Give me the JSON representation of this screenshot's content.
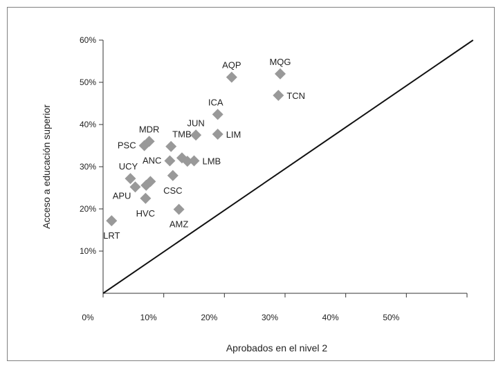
{
  "chart_data": {
    "type": "scatter",
    "xlabel": "Aprobados en el nivel 2",
    "ylabel": "Acceso a educación superior",
    "xlim": [
      0,
      60
    ],
    "ylim": [
      0,
      60
    ],
    "x_ticks": [
      "0%",
      "10%",
      "20%",
      "30%",
      "40%",
      "50%"
    ],
    "y_ticks": [
      "10%",
      "20%",
      "30%",
      "40%",
      "50%",
      "60%"
    ],
    "marker": "diamond",
    "marker_color": "#999999",
    "reference_line": {
      "from": [
        0,
        0
      ],
      "to": [
        61,
        60
      ],
      "color": "#111111"
    },
    "points": [
      {
        "label": "LRT",
        "x": 1.4,
        "y": 17.2,
        "label_pos": "below"
      },
      {
        "label": "APU",
        "x": 5.3,
        "y": 25.2,
        "label_pos": "left-below"
      },
      {
        "label": "UCY",
        "x": 4.5,
        "y": 27.2,
        "label_pos": "above-left"
      },
      {
        "label": "HVC",
        "x": 7.0,
        "y": 22.5,
        "label_pos": "below"
      },
      {
        "label": "",
        "x": 7.1,
        "y": 25.6
      },
      {
        "label": "",
        "x": 7.8,
        "y": 26.5
      },
      {
        "label": "PSC",
        "x": 6.8,
        "y": 35.0,
        "label_pos": "left"
      },
      {
        "label": "MDR",
        "x": 7.6,
        "y": 36.0,
        "label_pos": "above"
      },
      {
        "label": "ANC",
        "x": 11.0,
        "y": 31.4,
        "label_pos": "left"
      },
      {
        "label": "CSC",
        "x": 11.5,
        "y": 27.9,
        "label_pos": "below"
      },
      {
        "label": "TMB",
        "x": 11.2,
        "y": 34.8,
        "label_pos": "above-right"
      },
      {
        "label": "",
        "x": 13.0,
        "y": 32.1
      },
      {
        "label": "",
        "x": 13.9,
        "y": 31.3
      },
      {
        "label": "LMB",
        "x": 15.0,
        "y": 31.4,
        "label_pos": "right"
      },
      {
        "label": "AMZ",
        "x": 12.5,
        "y": 19.9,
        "label_pos": "below"
      },
      {
        "label": "JUN",
        "x": 15.3,
        "y": 37.5,
        "label_pos": "above"
      },
      {
        "label": "ICA",
        "x": 18.9,
        "y": 42.4,
        "label_pos": "above-left"
      },
      {
        "label": "LIM",
        "x": 18.9,
        "y": 37.7,
        "label_pos": "right"
      },
      {
        "label": "AQP",
        "x": 21.2,
        "y": 51.2,
        "label_pos": "above"
      },
      {
        "label": "MQG",
        "x": 29.2,
        "y": 52.0,
        "label_pos": "above"
      },
      {
        "label": "TCN",
        "x": 28.9,
        "y": 46.9,
        "label_pos": "right"
      }
    ]
  }
}
